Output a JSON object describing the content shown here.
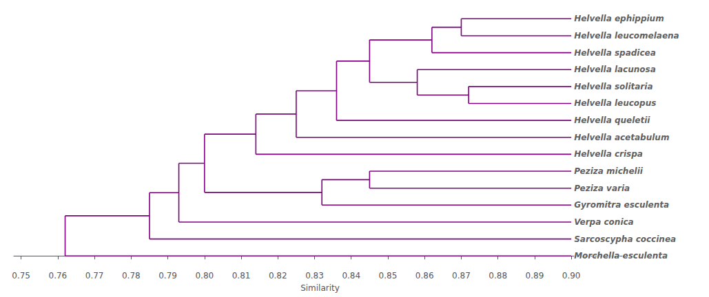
{
  "chart_data": {
    "type": "dendrogram",
    "xlabel": "Similarity",
    "color": "#800080",
    "xlim": [
      0.748,
      0.915
    ],
    "xticks": [
      0.75,
      0.76,
      0.77,
      0.78,
      0.79,
      {
        "value": 0.8,
        "label": "0.80"
      },
      0.81,
      0.82,
      0.83,
      0.84,
      0.85,
      0.86,
      0.87,
      0.88,
      0.89,
      {
        "value": 0.9,
        "label": "0.90"
      }
    ],
    "grid": false,
    "leaf_x": 0.9,
    "tree": {
      "similarity": 0.762,
      "children": [
        {
          "similarity": 0.785,
          "children": [
            {
              "similarity": 0.793,
              "children": [
                {
                  "similarity": 0.8,
                  "children": [
                    {
                      "similarity": 0.814,
                      "children": [
                        {
                          "similarity": 0.825,
                          "children": [
                            {
                              "similarity": 0.836,
                              "children": [
                                {
                                  "similarity": 0.845,
                                  "children": [
                                    {
                                      "similarity": 0.862,
                                      "children": [
                                        {
                                          "similarity": 0.87,
                                          "children": [
                                            "Helvella ephippium",
                                            "Helvella leucomelaena"
                                          ]
                                        },
                                        "Helvella spadicea"
                                      ]
                                    },
                                    {
                                      "similarity": 0.858,
                                      "children": [
                                        "Helvella lacunosa",
                                        {
                                          "similarity": 0.872,
                                          "children": [
                                            "Helvella solitaria",
                                            "Helvella leucopus"
                                          ]
                                        }
                                      ]
                                    }
                                  ]
                                },
                                "Helvella queletii"
                              ]
                            },
                            "Helvella acetabulum"
                          ]
                        },
                        "Helvella crispa"
                      ]
                    },
                    {
                      "similarity": 0.832,
                      "children": [
                        {
                          "similarity": 0.845,
                          "children": [
                            "Peziza michelii",
                            "Peziza varia"
                          ]
                        },
                        "Gyromitra esculenta"
                      ]
                    }
                  ]
                },
                "Verpa conica"
              ]
            },
            "Sarcoscypha coccinea"
          ]
        },
        "Morchella esculenta"
      ]
    }
  }
}
